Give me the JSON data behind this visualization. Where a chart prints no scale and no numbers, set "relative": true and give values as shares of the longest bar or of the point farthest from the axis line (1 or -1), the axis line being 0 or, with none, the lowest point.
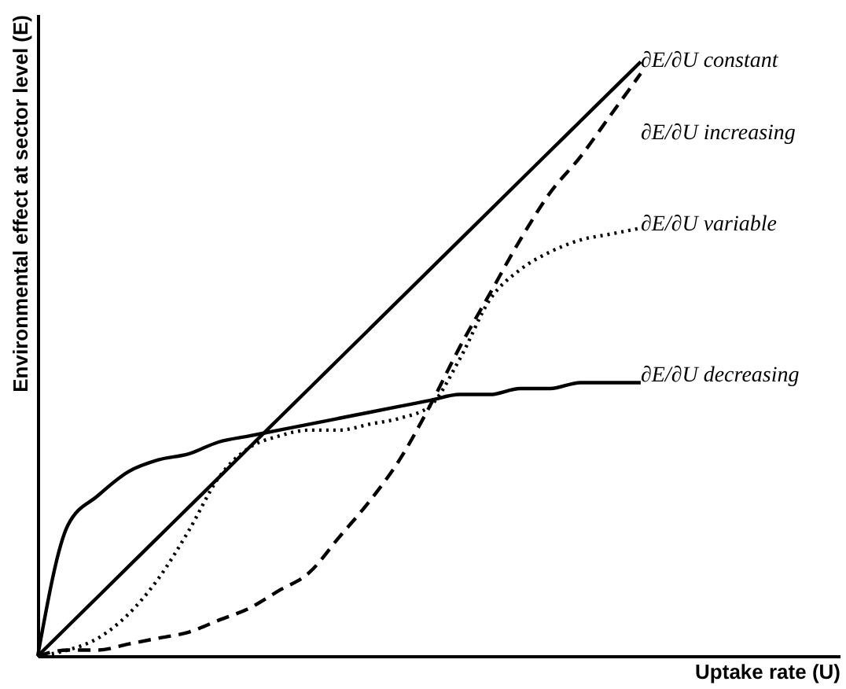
{
  "chart_data": {
    "type": "line",
    "relative": true,
    "xlabel": "Uptake rate (U)",
    "ylabel": "Environmental effect at sector level (E)",
    "grid": false,
    "marker": "none",
    "categories": [
      null,
      null,
      null,
      null,
      null,
      null,
      null,
      null,
      null,
      null,
      null,
      null,
      null,
      null,
      null,
      null,
      null,
      null,
      null,
      null,
      null
    ],
    "series": [
      {
        "name": "∂E/∂U constant",
        "color": "#000000",
        "line_style": "solid",
        "values": [
          0,
          0.05,
          0.1,
          0.15,
          0.2,
          0.25,
          0.3,
          0.35,
          0.4,
          0.45,
          0.5,
          0.55,
          0.6,
          0.65,
          0.7,
          0.75,
          0.8,
          0.85,
          0.9,
          0.95,
          1
        ]
      },
      {
        "name": "∂E/∂U increasing",
        "color": "#000000",
        "line_style": "dashed",
        "values": [
          0,
          0.01,
          0.01,
          0.02,
          0.03,
          0.04,
          0.06,
          0.08,
          0.11,
          0.14,
          0.2,
          0.26,
          0.33,
          0.42,
          0.52,
          0.61,
          0.7,
          0.78,
          0.84,
          0.91,
          0.98
        ]
      },
      {
        "name": "∂E/∂U variable",
        "color": "#000000",
        "line_style": "dotted",
        "values": [
          0,
          0.01,
          0.03,
          0.07,
          0.13,
          0.21,
          0.3,
          0.35,
          0.37,
          0.38,
          0.38,
          0.39,
          0.4,
          0.42,
          0.5,
          0.6,
          0.65,
          0.68,
          0.7,
          0.71,
          0.72
        ]
      },
      {
        "name": "∂E/∂U decreasing",
        "color": "#000000",
        "line_style": "solid",
        "values": [
          0,
          0.22,
          0.27,
          0.31,
          0.33,
          0.34,
          0.36,
          0.37,
          0.38,
          0.39,
          0.4,
          0.41,
          0.42,
          0.43,
          0.44,
          0.44,
          0.45,
          0.45,
          0.46,
          0.46,
          0.46
        ]
      }
    ]
  }
}
